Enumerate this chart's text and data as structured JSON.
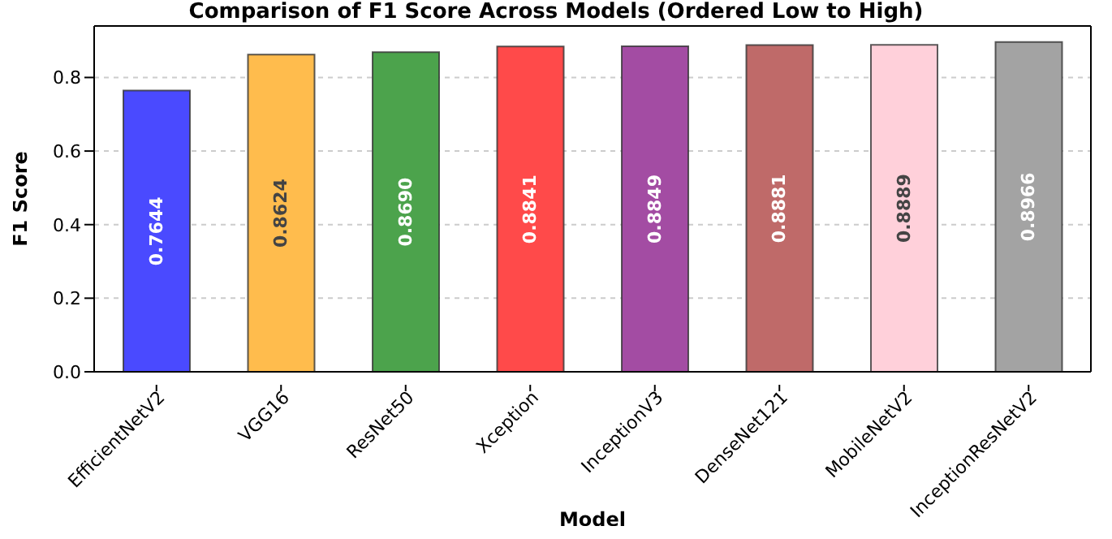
{
  "chart_data": {
    "type": "bar",
    "title": "Comparison of F1 Score Across Models (Ordered Low to High)",
    "xlabel": "Model",
    "ylabel": "F1 Score",
    "categories": [
      "EfficientNetV2",
      "VGG16",
      "ResNet50",
      "Xception",
      "InceptionV3",
      "DenseNet121",
      "MobileNetV2",
      "InceptionResNetV2"
    ],
    "values": [
      0.7644,
      0.8624,
      0.869,
      0.8841,
      0.8849,
      0.8881,
      0.8889,
      0.8966
    ],
    "colors": [
      "#4a4aff",
      "#ffbc4d",
      "#4ca34c",
      "#ff4a4a",
      "#a34ca3",
      "#bf6a69",
      "#ffd0da",
      "#a3a3a3"
    ],
    "value_labels": [
      "0.7644",
      "0.8624",
      "0.8690",
      "0.8841",
      "0.8849",
      "0.8881",
      "0.8889",
      "0.8966"
    ],
    "ylim": [
      0,
      0.94
    ],
    "yticks": [
      {
        "value": 0,
        "label": "0.0"
      },
      {
        "value": 0.2,
        "label": "0.2"
      },
      {
        "value": 0.4,
        "label": "0.4"
      },
      {
        "value": 0.6,
        "label": "0.6"
      },
      {
        "value": 0.8,
        "label": "0.8"
      }
    ],
    "grid": "y"
  }
}
